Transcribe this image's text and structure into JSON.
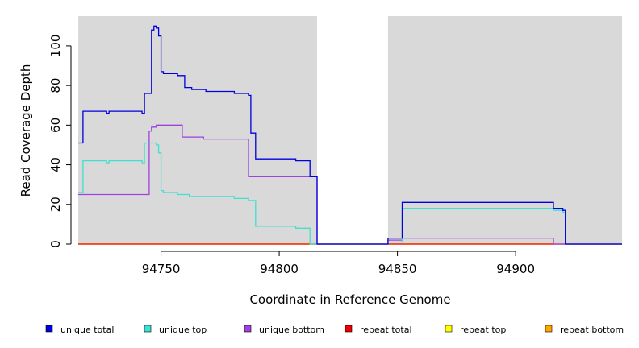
{
  "chart_data": {
    "type": "line",
    "xlabel": "Coordinate in Reference Genome",
    "ylabel": "Read Coverage Depth",
    "xlim": [
      94715,
      94945
    ],
    "ylim": [
      0,
      115
    ],
    "x_ticks": [
      94750,
      94800,
      94850,
      94900
    ],
    "y_ticks": [
      0,
      20,
      40,
      60,
      80,
      100
    ],
    "background_color": "#d9d9d9",
    "gap_region": [
      94816,
      94846
    ],
    "legend_position": "bottom",
    "series": [
      {
        "name": "unique total",
        "color": "#0000dd",
        "points": [
          [
            94715,
            51
          ],
          [
            94717,
            51
          ],
          [
            94717,
            67
          ],
          [
            94727,
            67
          ],
          [
            94727,
            66
          ],
          [
            94728,
            66
          ],
          [
            94728,
            67
          ],
          [
            94742,
            67
          ],
          [
            94742,
            66
          ],
          [
            94743,
            66
          ],
          [
            94743,
            76
          ],
          [
            94746,
            76
          ],
          [
            94746,
            108
          ],
          [
            94747,
            108
          ],
          [
            94747,
            110
          ],
          [
            94748,
            110
          ],
          [
            94748,
            109
          ],
          [
            94749,
            109
          ],
          [
            94749,
            105
          ],
          [
            94750,
            105
          ],
          [
            94750,
            87
          ],
          [
            94751,
            87
          ],
          [
            94751,
            86
          ],
          [
            94757,
            86
          ],
          [
            94757,
            85
          ],
          [
            94760,
            85
          ],
          [
            94760,
            79
          ],
          [
            94763,
            79
          ],
          [
            94763,
            78
          ],
          [
            94769,
            78
          ],
          [
            94769,
            77
          ],
          [
            94781,
            77
          ],
          [
            94781,
            76
          ],
          [
            94787,
            76
          ],
          [
            94787,
            75
          ],
          [
            94788,
            75
          ],
          [
            94788,
            56
          ],
          [
            94790,
            56
          ],
          [
            94790,
            43
          ],
          [
            94807,
            43
          ],
          [
            94807,
            42
          ],
          [
            94813,
            42
          ],
          [
            94813,
            34
          ],
          [
            94816,
            34
          ],
          [
            94816,
            0
          ],
          [
            94846,
            0
          ],
          [
            94846,
            3
          ],
          [
            94852,
            3
          ],
          [
            94852,
            21
          ],
          [
            94916,
            21
          ],
          [
            94916,
            18
          ],
          [
            94920,
            18
          ],
          [
            94920,
            17
          ],
          [
            94921,
            17
          ],
          [
            94921,
            0
          ],
          [
            94945,
            0
          ]
        ]
      },
      {
        "name": "unique top",
        "color": "#40e0d0",
        "points": [
          [
            94715,
            26
          ],
          [
            94717,
            26
          ],
          [
            94717,
            42
          ],
          [
            94727,
            42
          ],
          [
            94727,
            41
          ],
          [
            94728,
            41
          ],
          [
            94728,
            42
          ],
          [
            94742,
            42
          ],
          [
            94742,
            41
          ],
          [
            94743,
            41
          ],
          [
            94743,
            51
          ],
          [
            94748,
            51
          ],
          [
            94748,
            50
          ],
          [
            94749,
            50
          ],
          [
            94749,
            46
          ],
          [
            94750,
            46
          ],
          [
            94750,
            27
          ],
          [
            94751,
            27
          ],
          [
            94751,
            26
          ],
          [
            94757,
            26
          ],
          [
            94757,
            25
          ],
          [
            94762,
            25
          ],
          [
            94762,
            24
          ],
          [
            94781,
            24
          ],
          [
            94781,
            23
          ],
          [
            94787,
            23
          ],
          [
            94787,
            22
          ],
          [
            94790,
            22
          ],
          [
            94790,
            9
          ],
          [
            94807,
            9
          ],
          [
            94807,
            8
          ],
          [
            94813,
            8
          ],
          [
            94813,
            0
          ],
          [
            94846,
            0
          ],
          [
            94846,
            1
          ],
          [
            94852,
            1
          ],
          [
            94852,
            18
          ],
          [
            94916,
            18
          ],
          [
            94916,
            17
          ],
          [
            94920,
            17
          ],
          [
            94920,
            16
          ],
          [
            94921,
            16
          ],
          [
            94921,
            0
          ],
          [
            94945,
            0
          ]
        ]
      },
      {
        "name": "unique bottom",
        "color": "#a040e0",
        "points": [
          [
            94715,
            25
          ],
          [
            94745,
            25
          ],
          [
            94745,
            57
          ],
          [
            94746,
            57
          ],
          [
            94746,
            59
          ],
          [
            94748,
            59
          ],
          [
            94748,
            60
          ],
          [
            94759,
            60
          ],
          [
            94759,
            54
          ],
          [
            94768,
            54
          ],
          [
            94768,
            53
          ],
          [
            94787,
            53
          ],
          [
            94787,
            34
          ],
          [
            94816,
            34
          ],
          [
            94816,
            0
          ],
          [
            94846,
            0
          ],
          [
            94846,
            2
          ],
          [
            94852,
            2
          ],
          [
            94852,
            3
          ],
          [
            94916,
            3
          ],
          [
            94916,
            0
          ],
          [
            94945,
            0
          ]
        ]
      },
      {
        "name": "repeat total",
        "color": "#ee0000",
        "points": [
          [
            94715,
            0
          ],
          [
            94945,
            0
          ]
        ]
      },
      {
        "name": "repeat top",
        "color": "#ffff00",
        "points": [
          [
            94715,
            0
          ],
          [
            94945,
            0
          ]
        ]
      },
      {
        "name": "repeat bottom",
        "color": "#ffa500",
        "points": [
          [
            94715,
            0
          ],
          [
            94945,
            0
          ]
        ]
      }
    ]
  }
}
